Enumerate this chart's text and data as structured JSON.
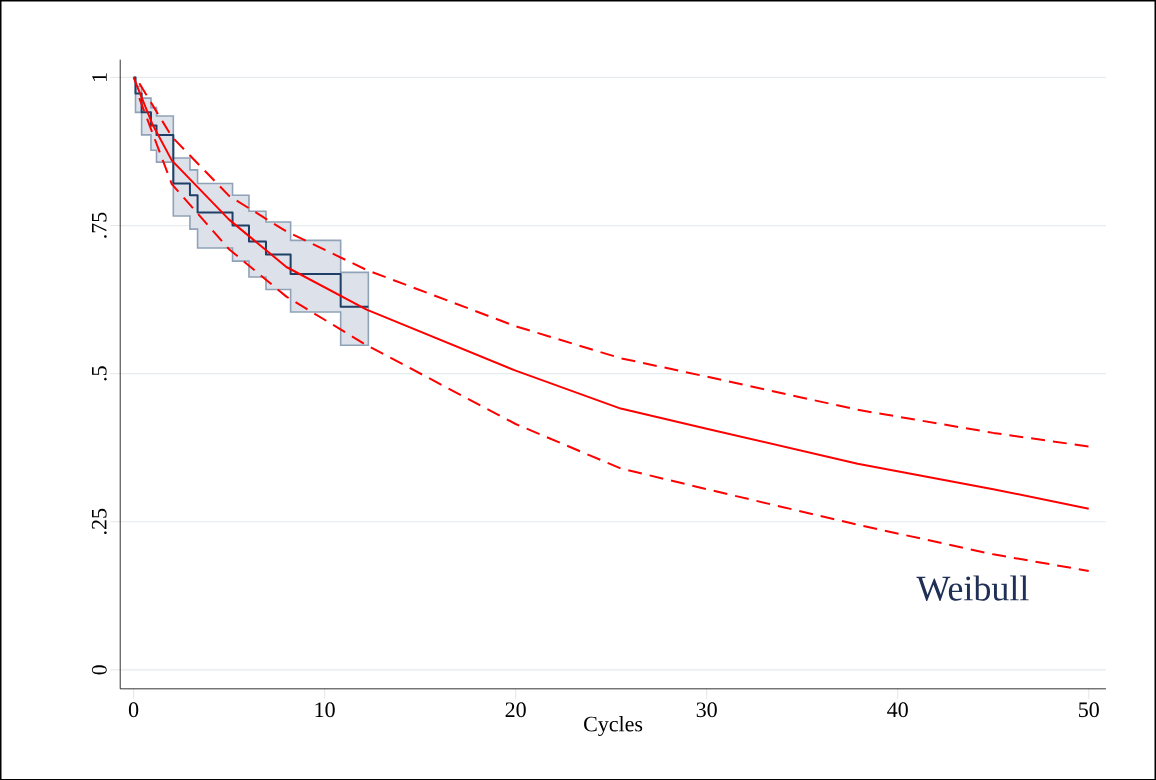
{
  "chart_data": {
    "type": "line",
    "xlabel": "Cycles",
    "annotations": [
      "Weibull"
    ],
    "x": [
      0,
      1,
      2,
      5,
      8,
      12.2,
      20,
      25.5,
      30,
      37.9,
      45,
      50
    ],
    "series": [
      {
        "type": "step",
        "color": "#1f3f66",
        "x": [
          0,
          0.1,
          0.42,
          0.91,
          1.2,
          2.08,
          2.95,
          3.35,
          5.18,
          6.04,
          6.93,
          8.22,
          10.84,
          12.29
        ],
        "values": [
          1,
          0.973,
          0.941,
          0.919,
          0.903,
          0.821,
          0.801,
          0.772,
          0.75,
          0.723,
          0.701,
          0.668,
          0.613,
          0.613
        ],
        "lower": [
          1,
          0.941,
          0.903,
          0.877,
          0.857,
          0.766,
          0.744,
          0.712,
          0.69,
          0.663,
          0.642,
          0.604,
          0.548,
          0.548
        ],
        "upper": [
          1,
          0.985,
          0.965,
          0.949,
          0.935,
          0.864,
          0.844,
          0.821,
          0.801,
          0.774,
          0.756,
          0.725,
          0.671,
          0.671
        ]
      },
      {
        "color": "#ff0000",
        "line_style": "solid",
        "values": [
          1.0,
          0.92,
          0.86,
          0.76,
          0.68,
          0.608,
          0.505,
          0.441,
          0.407,
          0.348,
          0.305,
          0.272
        ]
      },
      {
        "color": "#ff0000",
        "line_style": "dashed",
        "x": [
          0.3,
          2,
          5,
          8,
          12.2,
          20,
          25.5,
          30,
          37.9,
          45,
          50
        ],
        "values": [
          0.99,
          0.9,
          0.8,
          0.74,
          0.675,
          0.58,
          0.526,
          0.495,
          0.439,
          0.4,
          0.377
        ]
      },
      {
        "color": "#ff0000",
        "line_style": "dashed",
        "x": [
          0.3,
          2,
          5,
          8,
          12.2,
          20,
          25.5,
          30,
          37.9,
          45,
          50
        ],
        "values": [
          0.965,
          0.82,
          0.71,
          0.63,
          0.548,
          0.415,
          0.34,
          0.305,
          0.245,
          0.195,
          0.167
        ]
      }
    ],
    "xlim": [
      -0.7,
      50.9
    ],
    "ylim": [
      -0.032,
      1.03
    ],
    "xticks": [
      0,
      10,
      20,
      30,
      40,
      50
    ],
    "yticks": [
      0,
      {
        "value": 0.25,
        "label": ".25"
      },
      {
        "value": 0.5,
        "label": ".5"
      },
      {
        "value": 0.75,
        "label": ".75"
      },
      1
    ],
    "grid": "y",
    "marker": "none"
  }
}
